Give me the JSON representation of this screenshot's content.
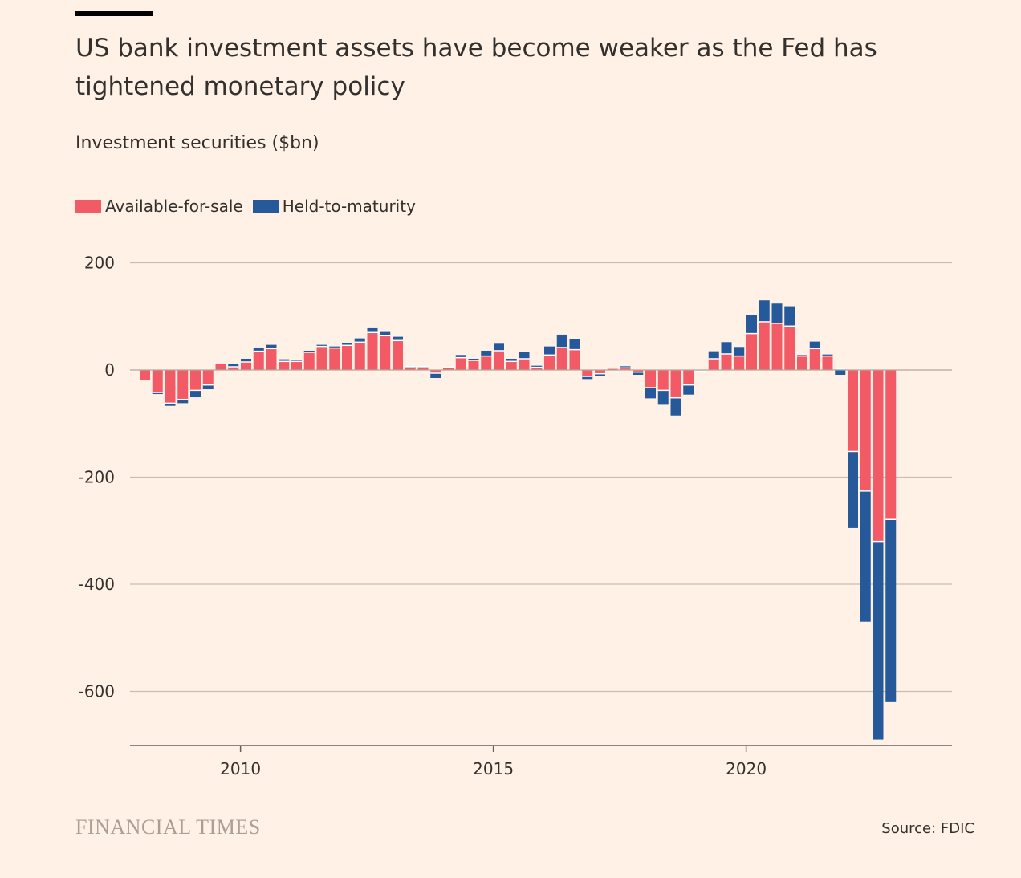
{
  "title": "US bank investment assets have become weaker as the Fed has tightened monetary policy",
  "subtitle": "Investment securities ($bn)",
  "legend": {
    "afs_label": "Available-for-sale",
    "htm_label": "Held-to-maturity"
  },
  "footer": {
    "brand": "FINANCIAL TIMES",
    "source": "Source: FDIC"
  },
  "colors": {
    "afs": "#F25A66",
    "htm": "#26599A",
    "background": "#FFF1E5",
    "grid": "#C9BCB0",
    "text": "#33302E"
  },
  "chart_data": {
    "type": "bar",
    "stacked": true,
    "categories": [
      "2008Q1",
      "2008Q2",
      "2008Q3",
      "2008Q4",
      "2009Q1",
      "2009Q2",
      "2009Q3",
      "2009Q4",
      "2010Q1",
      "2010Q2",
      "2010Q3",
      "2010Q4",
      "2011Q1",
      "2011Q2",
      "2011Q3",
      "2011Q4",
      "2012Q1",
      "2012Q2",
      "2012Q3",
      "2012Q4",
      "2013Q1",
      "2013Q2",
      "2013Q3",
      "2013Q4",
      "2014Q1",
      "2014Q2",
      "2014Q3",
      "2014Q4",
      "2015Q1",
      "2015Q2",
      "2015Q3",
      "2015Q4",
      "2016Q1",
      "2016Q2",
      "2016Q3",
      "2016Q4",
      "2017Q1",
      "2017Q2",
      "2017Q3",
      "2017Q4",
      "2018Q1",
      "2018Q2",
      "2018Q3",
      "2018Q4",
      "2019Q1",
      "2019Q2",
      "2019Q3",
      "2019Q4",
      "2020Q1",
      "2020Q2",
      "2020Q3",
      "2020Q4",
      "2021Q1",
      "2021Q2",
      "2021Q3",
      "2021Q4",
      "2022Q1",
      "2022Q2",
      "2022Q3",
      "2022Q4"
    ],
    "series": [
      {
        "name": "Available-for-sale",
        "values": [
          -18,
          -42,
          -62,
          -55,
          -38,
          -28,
          12,
          6,
          15,
          35,
          40,
          16,
          16,
          33,
          44,
          41,
          46,
          52,
          70,
          64,
          55,
          6,
          6,
          -6,
          5,
          23,
          18,
          26,
          36,
          16,
          21,
          5,
          28,
          42,
          38,
          -12,
          -7,
          2,
          4,
          -4,
          -33,
          -38,
          -52,
          -28,
          -2,
          21,
          30,
          26,
          68,
          90,
          87,
          82,
          26,
          40,
          26,
          2,
          -152,
          -226,
          -320,
          -279
        ]
      },
      {
        "name": "Held-to-maturity",
        "values": [
          0,
          -3,
          -5,
          -7,
          -13,
          -8,
          1,
          5,
          6,
          7,
          7,
          4,
          3,
          3,
          3,
          3,
          4,
          7,
          8,
          7,
          7,
          -2,
          -3,
          -9,
          -1,
          5,
          3,
          10,
          13,
          5,
          12,
          3,
          16,
          24,
          20,
          -5,
          -4,
          0,
          3,
          -5,
          -20,
          -27,
          -33,
          -18,
          -1,
          14,
          22,
          17,
          35,
          40,
          37,
          37,
          2,
          13,
          3,
          -11,
          -143,
          -244,
          -370,
          -341
        ]
      }
    ],
    "x_ticks": [
      "2010",
      "2015",
      "2020"
    ],
    "y_ticks": [
      "200",
      "0",
      "-200",
      "-400",
      "-600"
    ],
    "ylabel": "Investment securities ($bn)",
    "xlabel": "",
    "ylim": [
      -700,
      200
    ],
    "grid": true,
    "legend_position": "top-left"
  }
}
